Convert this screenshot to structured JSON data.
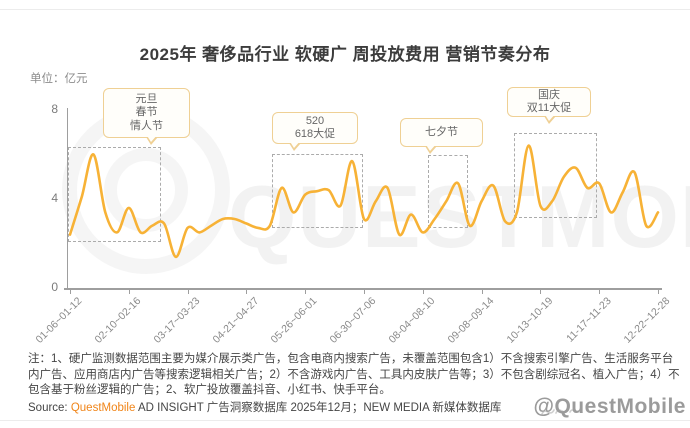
{
  "card": {
    "title": "2025年 奢侈品行业 软硬广 周投放费用 营销节奏分布",
    "unit_label": "单位：亿元"
  },
  "chart_data": {
    "type": "line",
    "title": "2025年 奢侈品行业 软硬广 周投放费用 营销节奏分布",
    "ylabel": "单位：亿元",
    "unit": "亿元",
    "line_color": "#F7B236",
    "ylim": [
      0,
      8
    ],
    "yticks": [
      0,
      4,
      8
    ],
    "grid": false,
    "legend": "none",
    "x_tick_labels": [
      "01-06~01-12",
      "02-10~02-16",
      "03-17~03-23",
      "04-21~04-27",
      "05-26~06-01",
      "06-30~07-06",
      "08-04~08-10",
      "09-08~09-14",
      "10-13~10-19",
      "11-17~11-23",
      "12-22~12-28"
    ],
    "x_tick_weeks": [
      1,
      6,
      11,
      16,
      21,
      26,
      31,
      36,
      41,
      46,
      51
    ],
    "weeks_total": 51,
    "values": [
      2.4,
      4.1,
      6.0,
      3.4,
      2.5,
      3.6,
      2.5,
      2.8,
      2.9,
      1.4,
      2.7,
      2.5,
      2.8,
      3.1,
      3.1,
      2.9,
      2.7,
      2.8,
      4.5,
      3.4,
      4.2,
      4.35,
      4.4,
      3.7,
      5.7,
      3.1,
      3.9,
      4.5,
      2.4,
      3.3,
      2.5,
      3.1,
      3.9,
      4.7,
      2.8,
      3.9,
      4.6,
      3.0,
      3.4,
      6.4,
      3.7,
      3.9,
      5.0,
      5.4,
      4.5,
      4.7,
      3.4,
      4.3,
      5.2,
      2.8,
      3.4
    ],
    "annotations": [
      {
        "id": "new-year-festivals",
        "lines": [
          "元旦",
          "春节",
          "情人节"
        ]
      },
      {
        "id": "520-618",
        "lines": [
          "520",
          "618大促"
        ]
      },
      {
        "id": "qixi",
        "lines": [
          "七夕节"
        ]
      },
      {
        "id": "guoqing-double11",
        "lines": [
          "国庆",
          "双11大促"
        ]
      }
    ]
  },
  "watermark": {
    "brand_text": "QUESTMOBILE",
    "handle": "@QuestMobile"
  },
  "footer": {
    "note": "注：1、硬广监测数据范围主要为媒介展示类广告，包含电商内搜索广告，未覆盖范围包含1）不含搜索引擎广告、生活服务平台内广告、应用商店内广告等搜索逻辑相关广告；2）不含游戏内广告、工具内皮肤广告等；3）不包含剧综冠名、植入广告；4）不包含基于粉丝逻辑的广告；2、软广投放覆盖抖音、小红书、快手平台。",
    "source_prefix": "Source: ",
    "source_brand": "QuestMobile",
    "source_rest": " AD INSIGHT 广告洞察数据库 2025年12月；NEW MEDIA 新媒体数据库"
  }
}
